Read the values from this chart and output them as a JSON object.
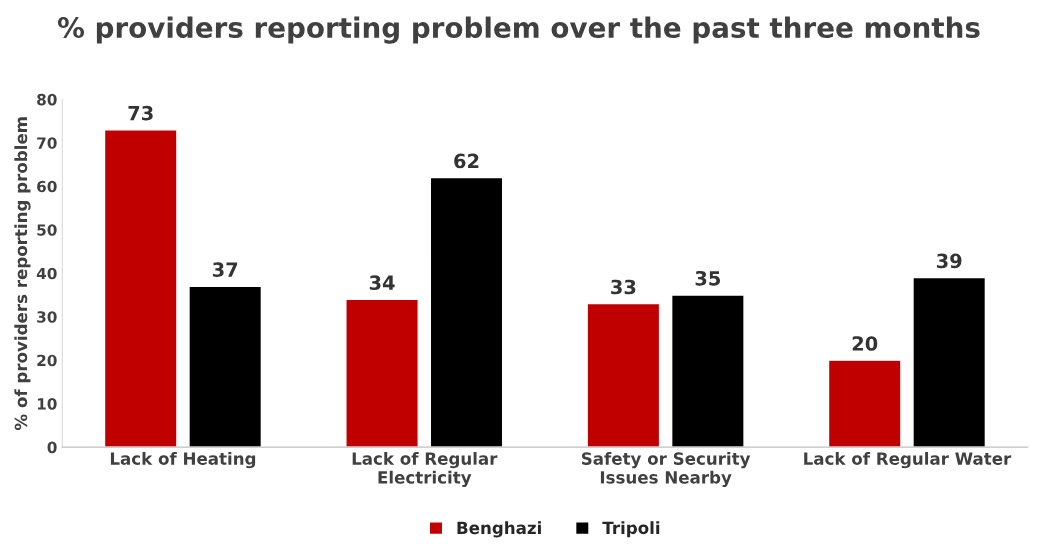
{
  "chart_data": {
    "type": "bar",
    "title": "% providers reporting problem over the past three months",
    "ylabel": "% of providers reporting problem",
    "categories": [
      "Lack of Heating",
      "Lack of Regular\nElectricity",
      "Safety or Security\nIssues Nearby",
      "Lack of Regular Water"
    ],
    "series": [
      {
        "name": "Benghazi",
        "color": "#c00000",
        "values": [
          73,
          34,
          33,
          20
        ]
      },
      {
        "name": "Tripoli",
        "color": "#000000",
        "values": [
          37,
          62,
          35,
          39
        ]
      }
    ],
    "ylim": [
      0,
      80
    ],
    "yticks": [
      0,
      10,
      20,
      30,
      40,
      50,
      60,
      70,
      80
    ],
    "grid": false,
    "legend": "bottom",
    "data_labels": true
  }
}
